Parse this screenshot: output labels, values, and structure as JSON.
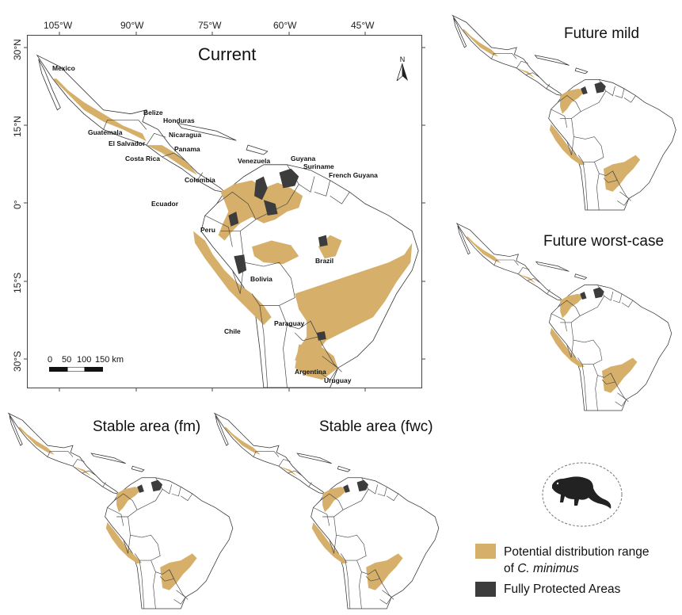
{
  "main_title": "Current",
  "panel_titles": {
    "future_mild": "Future mild",
    "future_worst": "Future worst-case",
    "stable_fm": "Stable area (fm)",
    "stable_fwc": "Stable area (fwc)"
  },
  "longitude_ticks": [
    "105°W",
    "90°W",
    "75°W",
    "60°W",
    "45°W"
  ],
  "latitude_ticks": [
    "30°N",
    "15°N",
    "0°",
    "15°S",
    "30°S"
  ],
  "north_arrow": "N",
  "scale_bar": {
    "labels": [
      "0",
      "50",
      "100",
      "150 km"
    ]
  },
  "countries": {
    "mexico": "Mexico",
    "belize": "Belize",
    "honduras": "Honduras",
    "guatemala": "Guatemala",
    "nicaragua": "Nicaragua",
    "el_salvador": "El Salvador",
    "panama": "Panama",
    "costa_rica": "Costa Rica",
    "venezuela": "Venezuela",
    "guyana": "Guyana",
    "suriname": "Suriname",
    "french_guyana": "French Guyana",
    "colombia": "Colombia",
    "ecuador": "Ecuador",
    "peru": "Peru",
    "brazil": "Brazil",
    "bolivia": "Bolivia",
    "paraguay": "Paraguay",
    "chile": "Chile",
    "argentina": "Argentina",
    "uruguay": "Uruguay"
  },
  "legend": {
    "distribution_label_line1": "Potential distribution range",
    "distribution_label_line2": "of ",
    "species": "C. minimus",
    "protected_label": "Fully Protected Areas"
  },
  "colors": {
    "distribution": "#d6b06a",
    "protected": "#3c3c3c",
    "land": "#ffffff",
    "border": "#333333"
  },
  "icons": {
    "species_silhouette": "lizard-icon",
    "north_arrow": "north-arrow-icon"
  }
}
